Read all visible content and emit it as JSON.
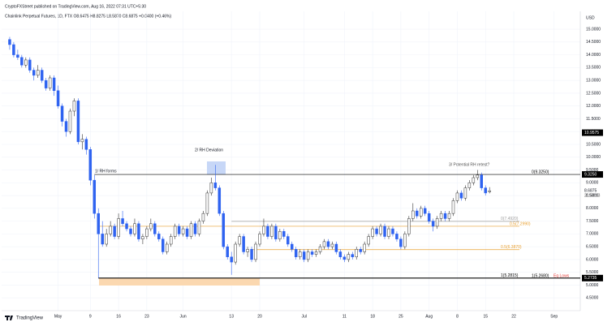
{
  "header": {
    "publisher": "CryptoFXStreet published on TradingView.com, Aug 16, 2022 07:31 UTC+5:30",
    "symbol": "Chainlink Perpetual Futures, 1D, FTX O8.6475 H8.8275 L8.5870 C8.6875 +0.0400 (+0.46%)",
    "currency": "USD"
  },
  "footer": {
    "brand": "TradingView"
  },
  "chart_data": {
    "type": "candlestick",
    "up_color": "#ffffff",
    "down_color": "#2f63f0",
    "outline_color": "#333333",
    "grid": true,
    "xlim": [
      -2,
      141.5
    ],
    "ylim": [
      4.0,
      15.7
    ],
    "xticks": [
      {
        "value": 12,
        "label": "May"
      },
      {
        "value": 20,
        "label": "9"
      },
      {
        "value": 27,
        "label": "16"
      },
      {
        "value": 34,
        "label": "23"
      },
      {
        "value": 43,
        "label": "Jun"
      },
      {
        "value": 55,
        "label": "13"
      },
      {
        "value": 62,
        "label": "20"
      },
      {
        "value": 73,
        "label": "Jul"
      },
      {
        "value": 83,
        "label": "11"
      },
      {
        "value": 90,
        "label": "18"
      },
      {
        "value": 97,
        "label": "25"
      },
      {
        "value": 104,
        "label": "Aug"
      },
      {
        "value": 111,
        "label": "8"
      },
      {
        "value": 118,
        "label": "15"
      },
      {
        "value": 125,
        "label": "22"
      },
      {
        "value": 135,
        "label": "Sep"
      }
    ],
    "yticks": [
      {
        "value": 4.5,
        "label": "4.5000"
      },
      {
        "value": 5.0,
        "label": "5.0000"
      },
      {
        "value": 5.5,
        "label": "5.5000"
      },
      {
        "value": 6.0,
        "label": "6.0000"
      },
      {
        "value": 6.5,
        "label": "6.5000"
      },
      {
        "value": 7.0,
        "label": "7.0000"
      },
      {
        "value": 7.5,
        "label": "7.5000"
      },
      {
        "value": 8.0,
        "label": "8.0000"
      },
      {
        "value": 8.5,
        "label": "8.5000"
      },
      {
        "value": 9.0,
        "label": "9.0000"
      },
      {
        "value": 9.5,
        "label": "9.5000"
      },
      {
        "value": 10.0,
        "label": "10.0000"
      },
      {
        "value": 10.5,
        "label": "10.5000"
      },
      {
        "value": 11.0,
        "label": "11.0000"
      },
      {
        "value": 11.5,
        "label": "11.5000"
      },
      {
        "value": 12.0,
        "label": "12.0000"
      },
      {
        "value": 12.5,
        "label": "12.5000"
      },
      {
        "value": 13.0,
        "label": "13.0000"
      },
      {
        "value": 13.5,
        "label": "13.5000"
      },
      {
        "value": 14.0,
        "label": "14.0000"
      },
      {
        "value": 14.5,
        "label": "14.5000"
      },
      {
        "value": 15.0,
        "label": "15.0000"
      }
    ],
    "ohlc": [
      [
        14.6,
        14.7,
        14.2,
        14.4
      ],
      [
        14.4,
        14.5,
        13.9,
        14.0
      ],
      [
        14.0,
        14.2,
        13.8,
        13.9
      ],
      [
        13.9,
        14.0,
        13.5,
        13.6
      ],
      [
        13.6,
        13.9,
        13.5,
        13.8
      ],
      [
        13.8,
        13.9,
        13.3,
        13.4
      ],
      [
        13.4,
        13.5,
        13.0,
        13.2
      ],
      [
        13.2,
        13.6,
        13.1,
        13.4
      ],
      [
        13.4,
        13.5,
        12.9,
        13.0
      ],
      [
        13.0,
        13.1,
        12.6,
        12.7
      ],
      [
        12.7,
        13.2,
        12.6,
        13.1
      ],
      [
        13.1,
        13.2,
        12.4,
        12.6
      ],
      [
        12.6,
        12.8,
        11.9,
        12.0
      ],
      [
        12.0,
        12.1,
        11.2,
        11.4
      ],
      [
        11.4,
        11.5,
        10.8,
        11.0
      ],
      [
        11.0,
        11.9,
        10.9,
        11.8
      ],
      [
        11.8,
        12.3,
        11.6,
        12.2
      ],
      [
        12.2,
        12.3,
        10.5,
        10.6
      ],
      [
        10.6,
        10.9,
        10.3,
        10.7
      ],
      [
        10.7,
        10.8,
        10.1,
        10.3
      ],
      [
        10.3,
        10.4,
        8.9,
        9.1
      ],
      [
        9.1,
        9.3,
        7.6,
        7.8
      ],
      [
        7.8,
        8.0,
        5.28,
        7.0
      ],
      [
        7.0,
        7.5,
        6.5,
        6.6
      ],
      [
        6.6,
        7.2,
        6.5,
        7.0
      ],
      [
        7.0,
        7.5,
        6.9,
        7.3
      ],
      [
        7.3,
        7.4,
        6.8,
        6.9
      ],
      [
        6.9,
        7.8,
        6.8,
        7.6
      ],
      [
        7.6,
        7.9,
        7.3,
        7.4
      ],
      [
        7.4,
        7.5,
        7.1,
        7.2
      ],
      [
        7.2,
        7.3,
        6.9,
        7.0
      ],
      [
        7.0,
        7.6,
        6.9,
        7.4
      ],
      [
        7.4,
        7.5,
        6.7,
        6.8
      ],
      [
        6.8,
        7.0,
        6.6,
        6.9
      ],
      [
        6.9,
        7.3,
        6.8,
        7.2
      ],
      [
        7.2,
        7.6,
        7.1,
        7.4
      ],
      [
        7.4,
        7.5,
        6.9,
        7.0
      ],
      [
        7.0,
        7.1,
        6.7,
        6.8
      ],
      [
        6.8,
        6.9,
        6.2,
        6.3
      ],
      [
        6.3,
        6.7,
        6.2,
        6.6
      ],
      [
        6.6,
        7.0,
        6.5,
        6.9
      ],
      [
        6.9,
        7.4,
        6.8,
        7.3
      ],
      [
        7.3,
        7.4,
        6.9,
        7.0
      ],
      [
        7.0,
        7.3,
        6.9,
        7.2
      ],
      [
        7.2,
        7.3,
        6.8,
        6.9
      ],
      [
        6.9,
        7.5,
        6.8,
        7.4
      ],
      [
        7.4,
        7.5,
        6.9,
        7.0
      ],
      [
        7.0,
        7.6,
        6.9,
        7.5
      ],
      [
        7.5,
        7.9,
        7.4,
        7.8
      ],
      [
        7.8,
        8.7,
        7.7,
        8.6
      ],
      [
        8.6,
        9.2,
        8.5,
        9.0
      ],
      [
        9.0,
        9.7,
        8.7,
        8.8
      ],
      [
        8.8,
        8.9,
        7.7,
        7.8
      ],
      [
        7.8,
        7.9,
        6.4,
        6.5
      ],
      [
        6.5,
        6.6,
        6.0,
        6.1
      ],
      [
        6.1,
        6.3,
        5.4,
        5.9
      ],
      [
        5.9,
        6.7,
        5.8,
        6.6
      ],
      [
        6.6,
        7.0,
        6.5,
        6.9
      ],
      [
        6.9,
        7.0,
        6.2,
        6.3
      ],
      [
        6.3,
        6.5,
        6.1,
        6.4
      ],
      [
        6.4,
        6.5,
        5.9,
        6.0
      ],
      [
        6.0,
        6.7,
        5.9,
        6.6
      ],
      [
        6.6,
        7.1,
        6.5,
        7.0
      ],
      [
        7.0,
        7.6,
        6.9,
        7.3
      ],
      [
        7.3,
        7.4,
        6.8,
        6.9
      ],
      [
        6.9,
        7.4,
        6.8,
        7.3
      ],
      [
        7.3,
        7.4,
        6.7,
        6.8
      ],
      [
        6.8,
        7.2,
        6.7,
        7.1
      ],
      [
        7.1,
        7.2,
        6.8,
        6.9
      ],
      [
        6.9,
        7.0,
        6.5,
        6.6
      ],
      [
        6.6,
        6.7,
        6.3,
        6.4
      ],
      [
        6.4,
        6.5,
        6.0,
        6.1
      ],
      [
        6.1,
        6.4,
        6.0,
        6.3
      ],
      [
        6.3,
        6.4,
        5.9,
        6.0
      ],
      [
        6.0,
        6.4,
        5.9,
        6.3
      ],
      [
        6.3,
        6.4,
        6.1,
        6.2
      ],
      [
        6.2,
        6.4,
        6.1,
        6.3
      ],
      [
        6.3,
        6.6,
        6.2,
        6.5
      ],
      [
        6.5,
        6.8,
        6.4,
        6.7
      ],
      [
        6.7,
        6.8,
        6.4,
        6.5
      ],
      [
        6.5,
        6.7,
        6.4,
        6.6
      ],
      [
        6.6,
        6.7,
        6.2,
        6.3
      ],
      [
        6.3,
        6.4,
        6.0,
        6.1
      ],
      [
        6.1,
        6.2,
        5.9,
        6.0
      ],
      [
        6.0,
        6.3,
        5.9,
        6.2
      ],
      [
        6.2,
        6.3,
        6.0,
        6.1
      ],
      [
        6.1,
        6.5,
        6.0,
        6.4
      ],
      [
        6.4,
        6.5,
        6.2,
        6.3
      ],
      [
        6.3,
        6.7,
        6.2,
        6.6
      ],
      [
        6.6,
        7.0,
        6.5,
        6.9
      ],
      [
        6.9,
        7.3,
        6.8,
        7.2
      ],
      [
        7.2,
        7.3,
        6.9,
        7.0
      ],
      [
        7.0,
        7.4,
        6.9,
        7.3
      ],
      [
        7.3,
        7.4,
        6.8,
        6.9
      ],
      [
        6.9,
        7.3,
        6.8,
        7.2
      ],
      [
        7.2,
        7.3,
        6.9,
        7.0
      ],
      [
        7.0,
        7.1,
        6.7,
        6.8
      ],
      [
        6.8,
        6.9,
        6.4,
        6.5
      ],
      [
        6.5,
        7.1,
        6.4,
        7.0
      ],
      [
        7.0,
        7.7,
        6.9,
        7.6
      ],
      [
        7.6,
        8.2,
        7.5,
        7.9
      ],
      [
        7.9,
        8.0,
        7.6,
        7.7
      ],
      [
        7.7,
        8.1,
        7.6,
        8.0
      ],
      [
        8.0,
        8.1,
        7.7,
        7.8
      ],
      [
        7.8,
        7.9,
        7.4,
        7.5
      ],
      [
        7.5,
        7.6,
        7.1,
        7.3
      ],
      [
        7.3,
        7.7,
        7.2,
        7.6
      ],
      [
        7.6,
        7.9,
        7.5,
        7.8
      ],
      [
        7.8,
        7.9,
        7.5,
        7.6
      ],
      [
        7.6,
        7.9,
        7.5,
        7.8
      ],
      [
        7.8,
        8.4,
        7.7,
        8.3
      ],
      [
        8.3,
        8.7,
        8.2,
        8.6
      ],
      [
        8.6,
        8.7,
        8.3,
        8.4
      ],
      [
        8.4,
        8.9,
        8.3,
        8.8
      ],
      [
        8.8,
        9.1,
        8.7,
        9.0
      ],
      [
        9.0,
        9.3,
        8.9,
        9.2
      ],
      [
        9.2,
        9.5,
        9.1,
        9.3
      ],
      [
        9.3,
        9.4,
        8.7,
        8.8
      ],
      [
        8.8,
        8.9,
        8.5,
        8.6
      ],
      [
        8.6475,
        8.8275,
        8.587,
        8.6875
      ]
    ],
    "levels": [
      {
        "value": 9.325,
        "label": "0(9.3250)",
        "color": "#000000"
      },
      {
        "value": 7.492,
        "label": "0(7.4920)",
        "color": "#9e9e9e"
      },
      {
        "value": 7.299,
        "label": "0.5(7.2990)",
        "color": "#e8a030"
      },
      {
        "value": 6.387,
        "label": "0.5(6.3870)",
        "color": "#e8a030"
      },
      {
        "value": 5.2815,
        "label": "1(5.2815)",
        "color": "#000000"
      },
      {
        "value": 5.268,
        "label": "1(5.2680)",
        "color": "#000000"
      }
    ],
    "price_labels": [
      {
        "value": 10.9575,
        "label": "10.9575",
        "color": "#000000"
      },
      {
        "value": 9.325,
        "label": "9.3250",
        "color": "#000000"
      },
      {
        "value": 8.6875,
        "label": "8.6875",
        "color": null
      },
      {
        "value": 5.2735,
        "label": "5.2735",
        "color": "#000000"
      }
    ],
    "countdown": "21:58:13",
    "annotations": [
      "1/ RH forms",
      "2/ RH Deviation",
      "3/ Potential RH retest?",
      "Eq Lows"
    ]
  }
}
